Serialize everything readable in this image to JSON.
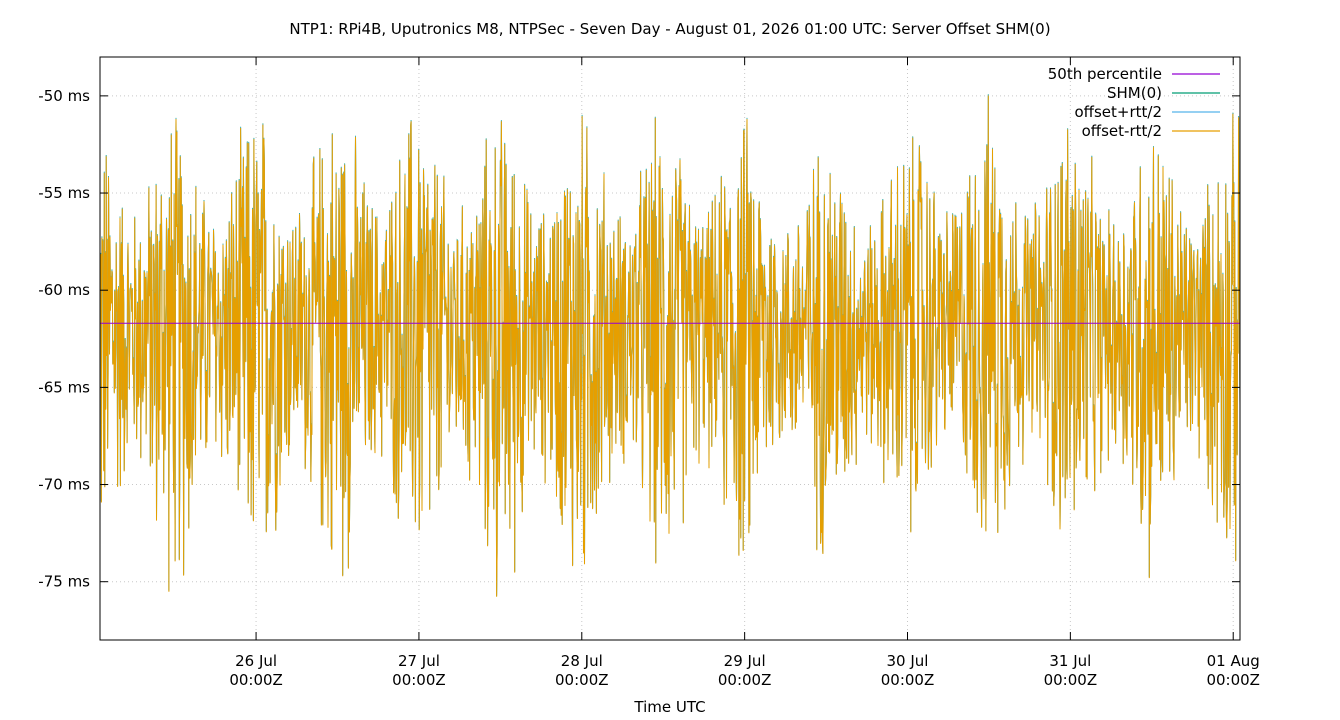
{
  "chart_data": {
    "type": "line",
    "title": "NTP1: RPi4B, Uputronics M8, NTPSec - Seven Day - August 01, 2026 01:00 UTC: Server Offset SHM(0)",
    "xlabel": "Time UTC",
    "ylabel": "",
    "ylim": [
      -78,
      -48
    ],
    "y_ticks": [
      {
        "value": -50,
        "label": "-50 ms"
      },
      {
        "value": -55,
        "label": "-55 ms"
      },
      {
        "value": -60,
        "label": "-60 ms"
      },
      {
        "value": -65,
        "label": "-65 ms"
      },
      {
        "value": -70,
        "label": "-70 ms"
      },
      {
        "value": -75,
        "label": "-75 ms"
      }
    ],
    "xlim": [
      "2026-07-25T01:00Z",
      "2026-08-01T01:00Z"
    ],
    "x_ticks": [
      {
        "value": "2026-07-26T00:00Z",
        "label": "26 Jul",
        "sublabel": "00:00Z"
      },
      {
        "value": "2026-07-27T00:00Z",
        "label": "27 Jul",
        "sublabel": "00:00Z"
      },
      {
        "value": "2026-07-28T00:00Z",
        "label": "28 Jul",
        "sublabel": "00:00Z"
      },
      {
        "value": "2026-07-29T00:00Z",
        "label": "29 Jul",
        "sublabel": "00:00Z"
      },
      {
        "value": "2026-07-30T00:00Z",
        "label": "30 Jul",
        "sublabel": "00:00Z"
      },
      {
        "value": "2026-07-31T00:00Z",
        "label": "31 Jul",
        "sublabel": "00:00Z"
      },
      {
        "value": "2026-08-01T00:00Z",
        "label": "01 Aug",
        "sublabel": "00:00Z"
      }
    ],
    "grid": true,
    "legend_position": "top-right",
    "series": [
      {
        "name": "50th percentile",
        "color": "#9400d3",
        "style": "hline",
        "value": -61.7
      },
      {
        "name": "SHM(0)",
        "color": "#009e73",
        "style": "line"
      },
      {
        "name": "offset+rtt/2",
        "color": "#56b4e9",
        "style": "line"
      },
      {
        "name": "offset-rtt/2",
        "color": "#e69f00",
        "style": "line"
      }
    ],
    "signal_summary": {
      "median": -61.7,
      "daily_peaks": [
        {
          "day": "2026-07-25",
          "max": -49.5,
          "min": -77.2
        },
        {
          "day": "2026-07-26",
          "max": -48.8,
          "min": -76.8
        },
        {
          "day": "2026-07-27",
          "max": -49.7,
          "min": -78.0
        },
        {
          "day": "2026-07-28",
          "max": -49.8,
          "min": -76.5
        },
        {
          "day": "2026-07-29",
          "max": -51.0,
          "min": -75.2
        },
        {
          "day": "2026-07-30",
          "max": -49.0,
          "min": -75.2
        },
        {
          "day": "2026-07-31",
          "max": -50.0,
          "min": -76.3
        }
      ]
    }
  }
}
